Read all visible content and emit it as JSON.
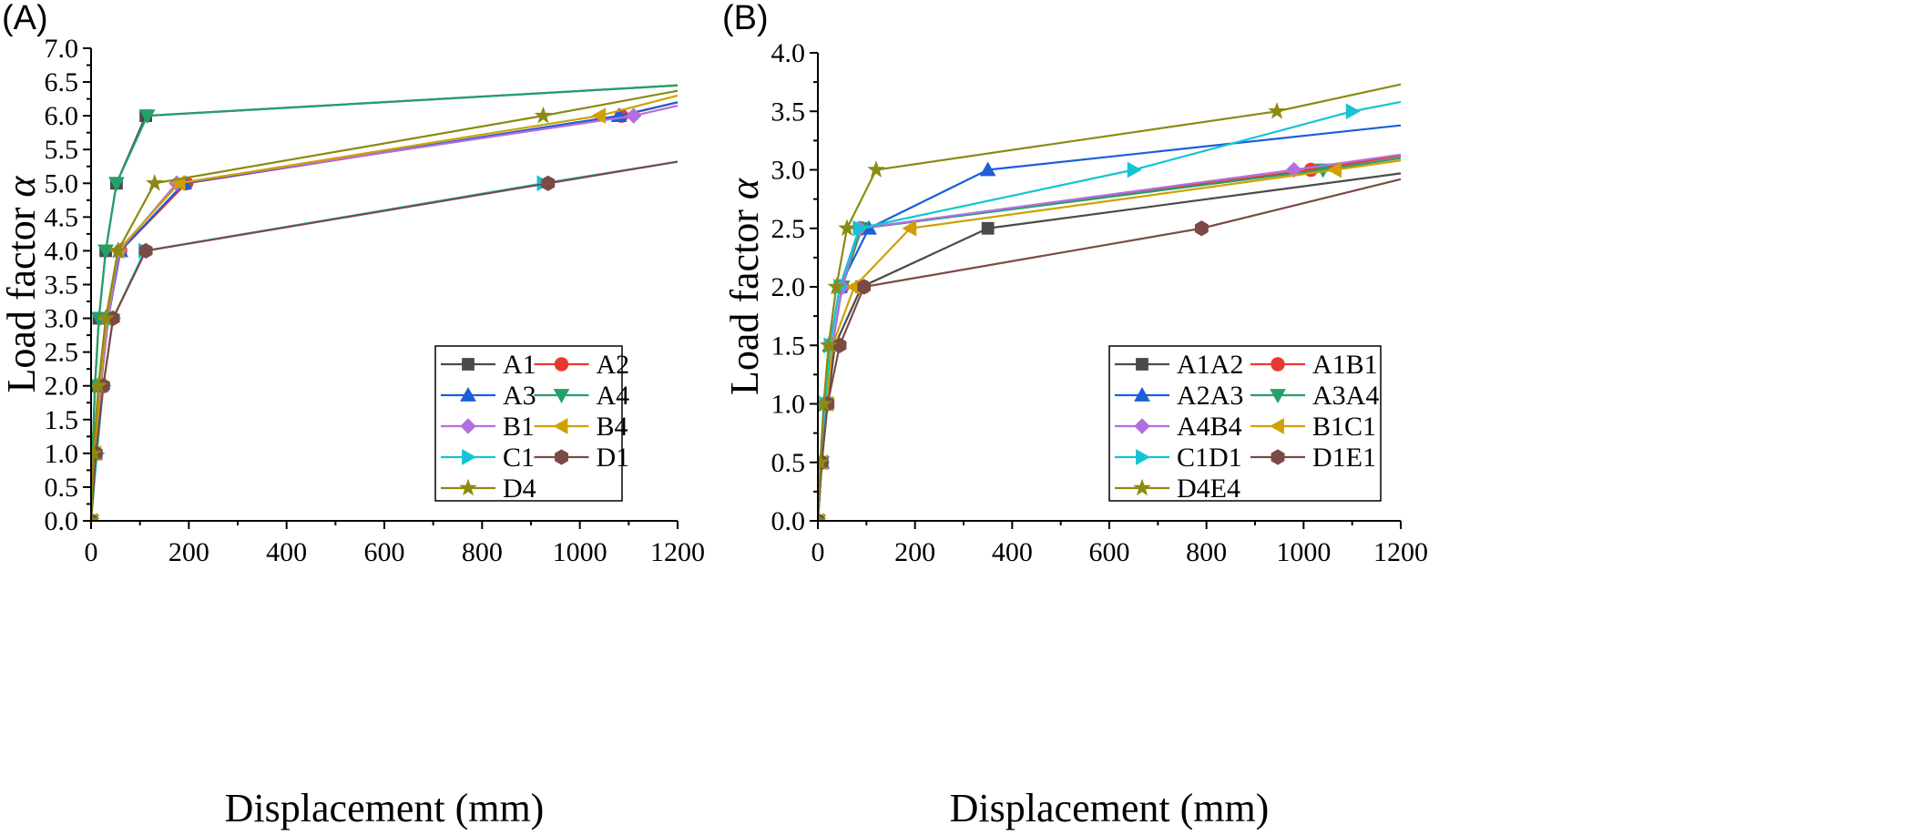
{
  "chart_data": [
    {
      "type": "line",
      "panel_label": "(A)",
      "xlabel": "Displacement (mm)",
      "ylabel": "Load factor α",
      "xlim": [
        0,
        1200
      ],
      "ylim": [
        0,
        7
      ],
      "xticks": [
        0,
        200,
        400,
        600,
        800,
        1000,
        1200
      ],
      "yticks": [
        0.0,
        0.5,
        1.0,
        1.5,
        2.0,
        2.5,
        3.0,
        3.5,
        4.0,
        4.5,
        5.0,
        5.5,
        6.0,
        6.5,
        7.0
      ],
      "legend_position": "bottom-right",
      "legend_columns": 2,
      "series": [
        {
          "name": "A1",
          "color": "#4a4a4a",
          "marker": "square",
          "x": [
            0,
            3,
            8,
            16,
            30,
            52,
            112,
            1200
          ],
          "y": [
            0,
            1,
            2,
            3,
            4,
            5,
            6,
            6.45
          ]
        },
        {
          "name": "A2",
          "color": "#e8392f",
          "marker": "circle",
          "x": [
            0,
            8,
            20,
            35,
            60,
            195,
            1085,
            1200
          ],
          "y": [
            0,
            1,
            2,
            3,
            4,
            5,
            6,
            6.2
          ]
        },
        {
          "name": "A3",
          "color": "#1c5fd8",
          "marker": "triangle-up",
          "x": [
            0,
            8,
            20,
            35,
            60,
            190,
            1080,
            1200
          ],
          "y": [
            0,
            1,
            2,
            3,
            4,
            5,
            6,
            6.2
          ]
        },
        {
          "name": "A4",
          "color": "#24a06a",
          "marker": "triangle-down",
          "x": [
            0,
            3,
            8,
            16,
            30,
            52,
            115,
            1200
          ],
          "y": [
            0,
            1,
            2,
            3,
            4,
            5,
            6,
            6.45
          ]
        },
        {
          "name": "B1",
          "color": "#b36fe0",
          "marker": "diamond",
          "x": [
            0,
            8,
            20,
            35,
            58,
            175,
            1110,
            1200
          ],
          "y": [
            0,
            1,
            2,
            3,
            4,
            5,
            6,
            6.15
          ]
        },
        {
          "name": "B4",
          "color": "#d0a000",
          "marker": "triangle-left",
          "x": [
            0,
            8,
            18,
            32,
            55,
            180,
            1040,
            1200
          ],
          "y": [
            0,
            1,
            2,
            3,
            4,
            5,
            6,
            6.3
          ]
        },
        {
          "name": "C1",
          "color": "#14c4d4",
          "marker": "triangle-right",
          "x": [
            0,
            12,
            25,
            45,
            110,
            925,
            1200
          ],
          "y": [
            0,
            1,
            2,
            3,
            4,
            5,
            5.32
          ]
        },
        {
          "name": "D1",
          "color": "#7b4a44",
          "marker": "hexagon",
          "x": [
            0,
            10,
            25,
            45,
            112,
            935,
            1200
          ],
          "y": [
            0,
            1,
            2,
            3,
            4,
            5,
            5.32
          ]
        },
        {
          "name": "D4",
          "color": "#8b8b12",
          "marker": "star",
          "x": [
            0,
            5,
            15,
            30,
            55,
            130,
            925,
            1200
          ],
          "y": [
            0,
            1,
            2,
            3,
            4,
            5,
            6,
            6.37
          ]
        }
      ]
    },
    {
      "type": "line",
      "panel_label": "(B)",
      "xlabel": "Displacement (mm)",
      "ylabel": "Load factor α",
      "xlim": [
        0,
        1200
      ],
      "ylim": [
        0,
        4
      ],
      "xticks": [
        0,
        200,
        400,
        600,
        800,
        1000,
        1200
      ],
      "yticks": [
        0.0,
        0.5,
        1.0,
        1.5,
        2.0,
        2.5,
        3.0,
        3.5,
        4.0
      ],
      "legend_position": "bottom-right",
      "legend_columns": 2,
      "series": [
        {
          "name": "A1A2",
          "color": "#4a4a4a",
          "marker": "square",
          "x": [
            0,
            8,
            20,
            35,
            90,
            350,
            1200
          ],
          "y": [
            0,
            0.5,
            1.0,
            1.5,
            2.0,
            2.5,
            2.97
          ]
        },
        {
          "name": "A1B1",
          "color": "#e8392f",
          "marker": "circle",
          "x": [
            0,
            8,
            18,
            30,
            50,
            90,
            1015,
            1200
          ],
          "y": [
            0,
            0.5,
            1.0,
            1.5,
            2.0,
            2.5,
            3.0,
            3.12
          ]
        },
        {
          "name": "A2A3",
          "color": "#1c5fd8",
          "marker": "triangle-up",
          "x": [
            0,
            8,
            15,
            25,
            45,
            105,
            350,
            1200
          ],
          "y": [
            0,
            0.5,
            1.0,
            1.5,
            2.0,
            2.5,
            3.0,
            3.38
          ]
        },
        {
          "name": "A3A4",
          "color": "#24a06a",
          "marker": "triangle-down",
          "x": [
            0,
            8,
            18,
            30,
            50,
            90,
            1040,
            1200
          ],
          "y": [
            0,
            0.5,
            1.0,
            1.5,
            2.0,
            2.5,
            3.0,
            3.1
          ]
        },
        {
          "name": "A4B4",
          "color": "#b36fe0",
          "marker": "diamond",
          "x": [
            0,
            8,
            18,
            30,
            50,
            85,
            980,
            1200
          ],
          "y": [
            0,
            0.5,
            1.0,
            1.5,
            2.0,
            2.5,
            3.0,
            3.13
          ]
        },
        {
          "name": "B1C1",
          "color": "#d0a000",
          "marker": "triangle-left",
          "x": [
            0,
            8,
            18,
            30,
            75,
            190,
            1065,
            1200
          ],
          "y": [
            0,
            0.5,
            1.0,
            1.5,
            2.0,
            2.5,
            3.0,
            3.08
          ]
        },
        {
          "name": "C1D1",
          "color": "#14c4d4",
          "marker": "triangle-right",
          "x": [
            0,
            8,
            15,
            25,
            45,
            85,
            650,
            1100,
            1200
          ],
          "y": [
            0,
            0.5,
            1.0,
            1.5,
            2.0,
            2.5,
            3.0,
            3.5,
            3.58
          ]
        },
        {
          "name": "D1E1",
          "color": "#7b4a44",
          "marker": "hexagon",
          "x": [
            0,
            8,
            20,
            45,
            95,
            790,
            1200
          ],
          "y": [
            0,
            0.5,
            1.0,
            1.5,
            2.0,
            2.5,
            2.92
          ]
        },
        {
          "name": "D4E4",
          "color": "#8b8b12",
          "marker": "star",
          "x": [
            0,
            5,
            12,
            22,
            38,
            60,
            120,
            945,
            1200
          ],
          "y": [
            0,
            0.5,
            1.0,
            1.5,
            2.0,
            2.5,
            3.0,
            3.5,
            3.73
          ]
        }
      ]
    }
  ]
}
